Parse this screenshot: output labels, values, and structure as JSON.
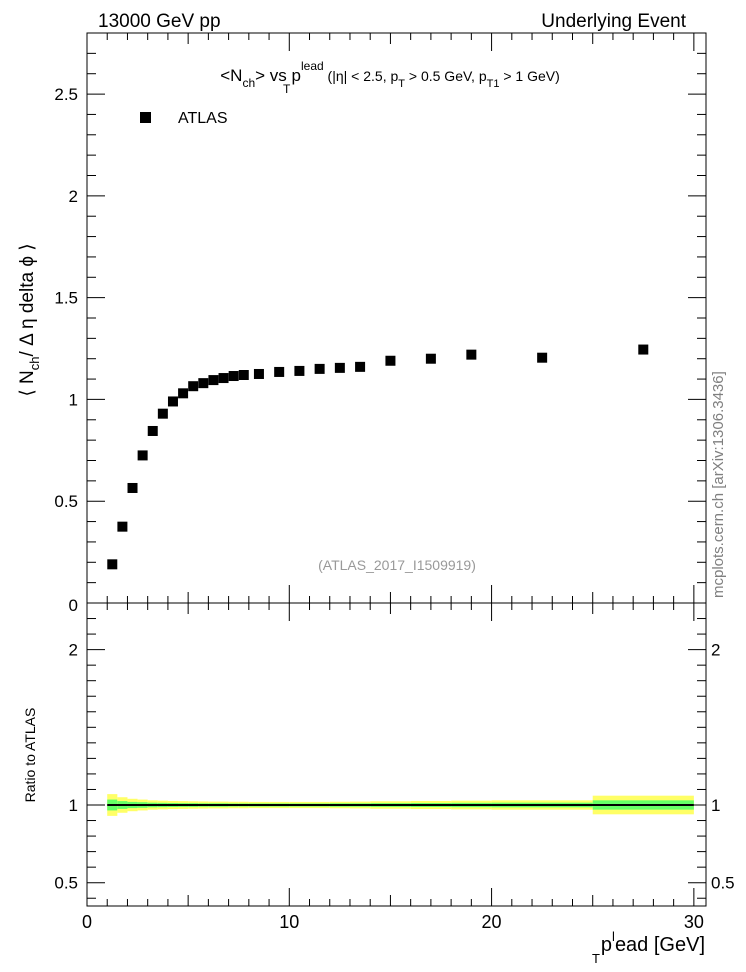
{
  "header": {
    "left": "13000 GeV pp",
    "right": "Underlying Event"
  },
  "side_label": "mcplots.cern.ch [arXiv:1306.3436]",
  "chart_data": {
    "type": "scatter",
    "title_parts": {
      "lead": "<N",
      "lead_sub": "ch",
      "mid": "> vs p",
      "p_sub": "T",
      "p_sup": "lead",
      "rest": " (|η| < 2.5, p",
      "rest_sub": "T",
      "rest2": " > 0.5 GeV, p",
      "rest2_sub": "T1",
      "rest3": " > 1 GeV)"
    },
    "ylabel_parts": {
      "pre": "⟨ N",
      "sub": "ch",
      "post": "/ Δ η delta ϕ ⟩"
    },
    "xlabel_parts": {
      "pre": "p",
      "sub": "T",
      "sup": "l",
      "post": "ead [GeV]"
    },
    "ratio_ylabel": "Ratio to ATLAS",
    "watermark": "(ATLAS_2017_I1509919)",
    "legend": {
      "entries": [
        "ATLAS"
      ],
      "position": "top-left"
    },
    "xlim": [
      0,
      30.6
    ],
    "ylim": [
      0,
      2.8
    ],
    "ratio_ylim": [
      0.35,
      2.3
    ],
    "x_ticks": [
      0,
      10,
      20,
      30
    ],
    "y_ticks": [
      0.5,
      1,
      1.5,
      2,
      2.5
    ],
    "y_tick_labels": [
      "0.5",
      "1",
      "1.5",
      "2",
      "2.5"
    ],
    "y_zero_label": "0",
    "ratio_ticks": [
      0.5,
      1,
      2
    ],
    "ratio_tick_labels": [
      "0.5",
      "1",
      "2"
    ],
    "series": [
      {
        "name": "ATLAS",
        "x": [
          1.25,
          1.75,
          2.25,
          2.75,
          3.25,
          3.75,
          4.25,
          4.75,
          5.25,
          5.75,
          6.25,
          6.75,
          7.25,
          7.75,
          8.5,
          9.5,
          10.5,
          11.5,
          12.5,
          13.5,
          15,
          17,
          19,
          22.5,
          27.5
        ],
        "y": [
          0.19,
          0.375,
          0.565,
          0.725,
          0.845,
          0.93,
          0.99,
          1.03,
          1.065,
          1.08,
          1.095,
          1.105,
          1.115,
          1.12,
          1.125,
          1.135,
          1.14,
          1.15,
          1.155,
          1.16,
          1.19,
          1.2,
          1.22,
          1.205,
          1.245
        ]
      }
    ],
    "ratio_band": {
      "x_edges": [
        1,
        1.5,
        2,
        2.5,
        3,
        3.5,
        4,
        4.5,
        5,
        5.5,
        6,
        6.5,
        7,
        7.5,
        8,
        9,
        10,
        11,
        12,
        13,
        14,
        16,
        18,
        20,
        25,
        30
      ],
      "outer": [
        0.07,
        0.05,
        0.04,
        0.035,
        0.03,
        0.028,
        0.026,
        0.025,
        0.024,
        0.023,
        0.022,
        0.022,
        0.021,
        0.021,
        0.02,
        0.02,
        0.02,
        0.02,
        0.021,
        0.022,
        0.024,
        0.026,
        0.028,
        0.03,
        0.06
      ],
      "inner": [
        0.035,
        0.025,
        0.02,
        0.018,
        0.015,
        0.014,
        0.013,
        0.012,
        0.012,
        0.011,
        0.011,
        0.011,
        0.01,
        0.01,
        0.01,
        0.01,
        0.01,
        0.01,
        0.011,
        0.011,
        0.012,
        0.013,
        0.014,
        0.015,
        0.03
      ],
      "outer_color": "#ffff66",
      "inner_color": "#66ff66"
    },
    "colors": {
      "marker": "#000000",
      "line": "#000000"
    }
  }
}
